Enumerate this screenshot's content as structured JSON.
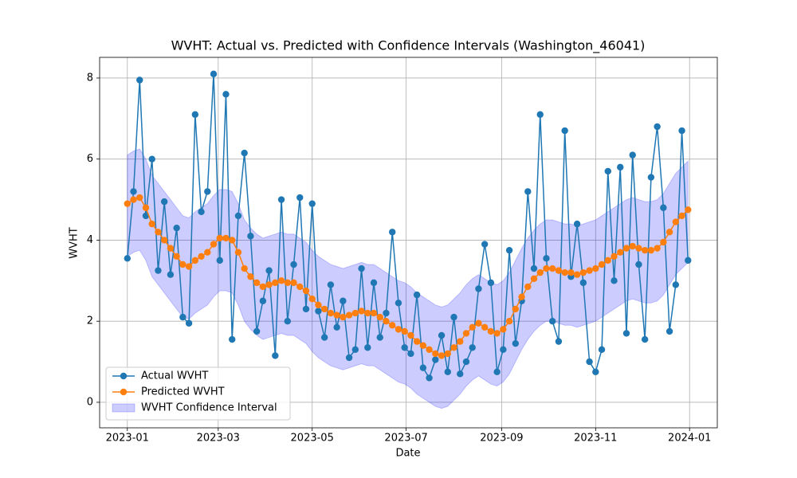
{
  "chart_data": {
    "type": "line",
    "title": "WVHT: Actual vs. Predicted with Confidence Intervals (Washington_46041)",
    "x_label": "Date",
    "y_label": "WVHT",
    "x": [
      0,
      4,
      8,
      12,
      16,
      20,
      24,
      28,
      32,
      36,
      40,
      44,
      48,
      52,
      56,
      60,
      64,
      68,
      72,
      76,
      80,
      84,
      88,
      92,
      96,
      100,
      104,
      108,
      112,
      116,
      120,
      124,
      128,
      132,
      136,
      140,
      144,
      148,
      152,
      156,
      160,
      164,
      168,
      172,
      176,
      180,
      184,
      188,
      192,
      196,
      200,
      204,
      208,
      212,
      216,
      220,
      224,
      228,
      232,
      236,
      240,
      244,
      248,
      252,
      256,
      260,
      264,
      268,
      272,
      276,
      280,
      284,
      288,
      292,
      296,
      300,
      304,
      308,
      312,
      316,
      320,
      324,
      328,
      332,
      336,
      340,
      344,
      348,
      352,
      356,
      360,
      364
    ],
    "series": [
      {
        "name": "Actual WVHT",
        "color": "#1f77b4",
        "values": [
          3.55,
          5.2,
          7.95,
          4.6,
          6.0,
          3.25,
          4.95,
          3.15,
          4.3,
          2.1,
          1.95,
          7.1,
          4.7,
          5.2,
          8.1,
          3.5,
          7.6,
          1.55,
          4.6,
          6.15,
          4.1,
          1.75,
          2.5,
          3.25,
          1.15,
          5.0,
          2.0,
          3.4,
          5.05,
          2.3,
          4.9,
          2.25,
          1.6,
          2.9,
          1.85,
          2.5,
          1.1,
          1.3,
          3.3,
          1.35,
          2.95,
          1.6,
          2.2,
          4.2,
          2.45,
          1.35,
          1.2,
          2.65,
          0.85,
          0.6,
          1.05,
          1.65,
          0.75,
          2.1,
          0.7,
          1.0,
          1.35,
          2.8,
          3.9,
          2.95,
          0.75,
          1.3,
          3.75,
          1.45,
          2.5,
          5.2,
          3.3,
          7.1,
          3.55,
          2.0,
          1.5,
          6.7,
          3.1,
          4.4,
          2.95,
          1.0,
          0.75,
          1.3,
          5.7,
          3.0,
          5.8,
          1.7,
          6.1,
          3.4,
          1.55,
          5.55,
          6.8,
          4.8,
          1.75,
          2.9,
          6.7,
          3.5
        ]
      },
      {
        "name": "Predicted WVHT",
        "color": "#ff7f0e",
        "values": [
          4.9,
          5.0,
          5.05,
          4.8,
          4.4,
          4.2,
          4.0,
          3.8,
          3.6,
          3.4,
          3.35,
          3.5,
          3.6,
          3.7,
          3.9,
          4.05,
          4.05,
          4.0,
          3.7,
          3.3,
          3.1,
          2.95,
          2.85,
          2.9,
          2.95,
          3.0,
          2.95,
          2.95,
          2.85,
          2.75,
          2.55,
          2.4,
          2.3,
          2.2,
          2.15,
          2.1,
          2.15,
          2.2,
          2.25,
          2.2,
          2.2,
          2.1,
          2.0,
          1.9,
          1.8,
          1.75,
          1.65,
          1.5,
          1.4,
          1.3,
          1.2,
          1.15,
          1.2,
          1.35,
          1.5,
          1.7,
          1.85,
          1.95,
          1.85,
          1.75,
          1.7,
          1.8,
          2.0,
          2.3,
          2.6,
          2.85,
          3.05,
          3.2,
          3.3,
          3.3,
          3.25,
          3.2,
          3.2,
          3.15,
          3.2,
          3.25,
          3.3,
          3.4,
          3.5,
          3.6,
          3.7,
          3.8,
          3.85,
          3.8,
          3.75,
          3.75,
          3.8,
          3.95,
          4.2,
          4.45,
          4.6,
          4.75
        ]
      }
    ],
    "band": {
      "name": "WVHT Confidence Interval",
      "color": "#0000ff",
      "lower": [
        3.6,
        3.7,
        3.75,
        3.5,
        3.1,
        2.9,
        2.7,
        2.5,
        2.3,
        2.1,
        2.05,
        2.2,
        2.3,
        2.4,
        2.6,
        2.75,
        2.75,
        2.7,
        2.4,
        2.0,
        1.8,
        1.65,
        1.55,
        1.6,
        1.65,
        1.7,
        1.65,
        1.65,
        1.55,
        1.45,
        1.25,
        1.1,
        1.0,
        0.9,
        0.85,
        0.8,
        0.85,
        0.9,
        0.95,
        0.9,
        0.9,
        0.8,
        0.7,
        0.6,
        0.5,
        0.45,
        0.35,
        0.2,
        0.1,
        0.0,
        -0.1,
        -0.15,
        -0.1,
        0.05,
        0.2,
        0.4,
        0.55,
        0.65,
        0.55,
        0.45,
        0.4,
        0.5,
        0.7,
        1.0,
        1.3,
        1.55,
        1.75,
        1.9,
        2.0,
        2.0,
        1.95,
        1.9,
        1.9,
        1.85,
        1.9,
        1.95,
        2.0,
        2.1,
        2.2,
        2.3,
        2.4,
        2.5,
        2.55,
        2.5,
        2.45,
        2.45,
        2.5,
        2.65,
        2.9,
        3.15,
        3.3,
        3.45
      ],
      "upper": [
        6.1,
        6.2,
        6.25,
        6.0,
        5.6,
        5.4,
        5.2,
        5.0,
        4.8,
        4.6,
        4.55,
        4.7,
        4.8,
        4.9,
        5.1,
        5.25,
        5.25,
        5.2,
        4.9,
        4.5,
        4.3,
        4.15,
        4.05,
        4.1,
        4.15,
        4.2,
        4.15,
        4.15,
        4.05,
        3.95,
        3.75,
        3.6,
        3.5,
        3.4,
        3.35,
        3.3,
        3.35,
        3.4,
        3.45,
        3.4,
        3.4,
        3.3,
        3.2,
        3.1,
        3.0,
        2.95,
        2.85,
        2.7,
        2.6,
        2.5,
        2.4,
        2.35,
        2.4,
        2.55,
        2.7,
        2.9,
        3.05,
        3.15,
        3.05,
        2.95,
        2.9,
        3.0,
        3.2,
        3.5,
        3.8,
        4.05,
        4.25,
        4.4,
        4.5,
        4.5,
        4.45,
        4.4,
        4.4,
        4.35,
        4.4,
        4.45,
        4.5,
        4.6,
        4.7,
        4.8,
        4.9,
        5.0,
        5.05,
        5.0,
        4.95,
        4.95,
        5.0,
        5.15,
        5.4,
        5.65,
        5.8,
        5.95
      ]
    },
    "xlim": [
      -18,
      383
    ],
    "xticks": [
      {
        "value": 0,
        "label": "2023-01"
      },
      {
        "value": 59,
        "label": "2023-03"
      },
      {
        "value": 120,
        "label": "2023-05"
      },
      {
        "value": 181,
        "label": "2023-07"
      },
      {
        "value": 243,
        "label": "2023-09"
      },
      {
        "value": 304,
        "label": "2023-11"
      },
      {
        "value": 365,
        "label": "2024-01"
      }
    ],
    "ylim": [
      -0.63,
      8.51
    ],
    "yticks": [
      0,
      2,
      4,
      6,
      8
    ],
    "grid": true,
    "legend": "lower left"
  }
}
